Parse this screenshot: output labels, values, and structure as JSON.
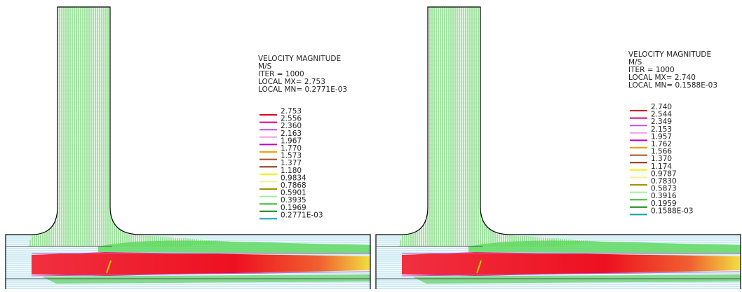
{
  "panels": [
    {
      "header": [
        "VELOCITY MAGNITUDE",
        "M/S",
        "ITER =   1000",
        "LOCAL MX=  2.753",
        "LOCAL MN= 0.2771E-03"
      ],
      "legend": [
        {
          "label": "2.753",
          "color": "#e0001a"
        },
        {
          "label": "2.556",
          "color": "#e0007a"
        },
        {
          "label": "2.360",
          "color": "#c050e0"
        },
        {
          "label": "2.163",
          "color": "#f0a0e0"
        },
        {
          "label": "1.967",
          "color": "#c000c0"
        },
        {
          "label": "1.770",
          "color": "#f0a000"
        },
        {
          "label": "1.573",
          "color": "#a05020"
        },
        {
          "label": "1.377",
          "color": "#903010"
        },
        {
          "label": "1.180",
          "color": "#f0f000"
        },
        {
          "label": "0.9834",
          "color": "#f0f0a0"
        },
        {
          "label": "0.7868",
          "color": "#a09000"
        },
        {
          "label": "0.5901",
          "color": "#a0f0a0"
        },
        {
          "label": "0.3935",
          "color": "#30c030"
        },
        {
          "label": "0.1969",
          "color": "#108010"
        },
        {
          "label": "0.2771E-03",
          "color": "#10a0b0"
        }
      ]
    },
    {
      "header": [
        "VELOCITY MAGNITUDE",
        "M/S",
        "ITER =   1000",
        "LOCAL MX=  2.740",
        "LOCAL MN= 0.1588E-03"
      ],
      "legend": [
        {
          "label": "2.740",
          "color": "#e0001a"
        },
        {
          "label": "2.544",
          "color": "#e0007a"
        },
        {
          "label": "2.349",
          "color": "#c050e0"
        },
        {
          "label": "2.153",
          "color": "#f0a0e0"
        },
        {
          "label": "1.957",
          "color": "#c000c0"
        },
        {
          "label": "1.762",
          "color": "#f0a000"
        },
        {
          "label": "1.566",
          "color": "#a05020"
        },
        {
          "label": "1.370",
          "color": "#903010"
        },
        {
          "label": "1.174",
          "color": "#f0f000"
        },
        {
          "label": "0.9787",
          "color": "#f0f0a0"
        },
        {
          "label": "0.7830",
          "color": "#a09000"
        },
        {
          "label": "0.5873",
          "color": "#a0f0a0"
        },
        {
          "label": "0.3916",
          "color": "#30c030"
        },
        {
          "label": "0.1959",
          "color": "#108010"
        },
        {
          "label": "0.1588E-03",
          "color": "#10a0b0"
        }
      ]
    }
  ]
}
